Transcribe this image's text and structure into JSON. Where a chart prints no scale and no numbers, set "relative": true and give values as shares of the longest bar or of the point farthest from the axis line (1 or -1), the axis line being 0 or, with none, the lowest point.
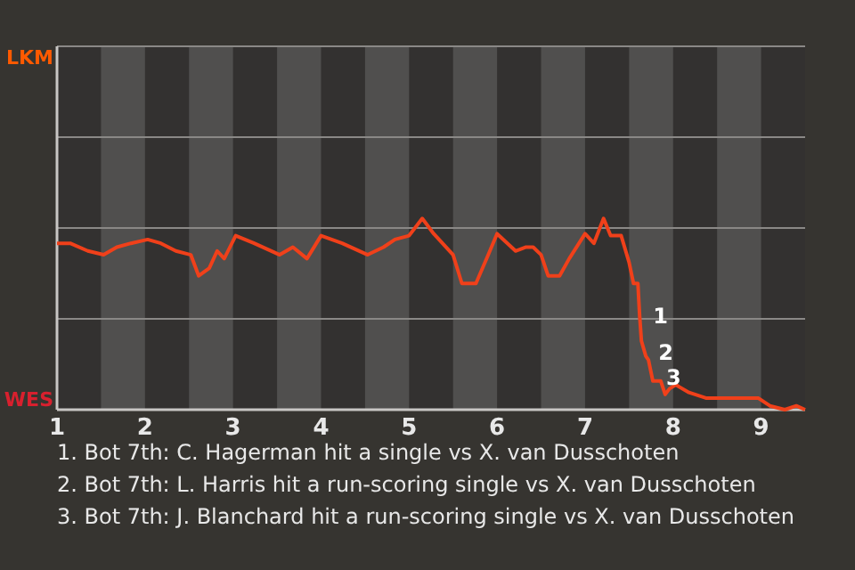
{
  "chart_data": {
    "type": "line",
    "relative": true,
    "xlim": [
      1,
      9.5
    ],
    "xticks": [
      1,
      2,
      3,
      4,
      5,
      6,
      7,
      8,
      9
    ],
    "marker": "none",
    "ref_lines": [
      {
        "axis": "y",
        "value": 0.475,
        "color": "#8a8886"
      },
      {
        "axis": "y",
        "value": 0.95,
        "color": "#8a8886"
      },
      {
        "axis": "y",
        "value": 1.425,
        "color": "#8a8886"
      }
    ],
    "line_style": "solid",
    "bands": [
      {
        "axis": "x",
        "from": 1.5,
        "to": 2,
        "color": "#504f4e"
      },
      {
        "axis": "x",
        "from": 2.5,
        "to": 3,
        "color": "#504f4e"
      },
      {
        "axis": "x",
        "from": 3.5,
        "to": 4,
        "color": "#504f4e"
      },
      {
        "axis": "x",
        "from": 4.5,
        "to": 5,
        "color": "#504f4e"
      },
      {
        "axis": "x",
        "from": 5.5,
        "to": 6,
        "color": "#504f4e"
      },
      {
        "axis": "x",
        "from": 6.5,
        "to": 7,
        "color": "#504f4e"
      },
      {
        "axis": "x",
        "from": 7.5,
        "to": 8,
        "color": "#504f4e"
      },
      {
        "axis": "x",
        "from": 8.5,
        "to": 9,
        "color": "#504f4e"
      }
    ],
    "series": [
      {
        "color": "#f0401a",
        "x": [
          1,
          1.15,
          1.35,
          1.53,
          1.68,
          1.84,
          2.03,
          2.18,
          2.35,
          2.52,
          2.61,
          2.73,
          2.82,
          2.9,
          3.03,
          3.24,
          3.53,
          3.68,
          3.84,
          4,
          4.24,
          4.53,
          4.71,
          4.84,
          5,
          5.15,
          5.28,
          5.5,
          5.6,
          5.76,
          5.9,
          6,
          6.21,
          6.33,
          6.41,
          6.5,
          6.58,
          6.71,
          6.82,
          7,
          7.1,
          7.21,
          7.29,
          7.41,
          7.5,
          7.55,
          7.6,
          7.62,
          7.64,
          7.69,
          7.72,
          7.77,
          7.86,
          7.91,
          7.96,
          8.03,
          8.18,
          8.38,
          8.58,
          8.79,
          8.97,
          9.1,
          9.27,
          9.4,
          9.5
        ],
        "values": [
          0.87,
          0.87,
          0.83,
          0.81,
          0.85,
          0.87,
          0.89,
          0.87,
          0.83,
          0.81,
          0.7,
          0.74,
          0.83,
          0.79,
          0.91,
          0.87,
          0.81,
          0.85,
          0.79,
          0.91,
          0.87,
          0.81,
          0.85,
          0.89,
          0.91,
          1,
          0.92,
          0.81,
          0.66,
          0.66,
          0.81,
          0.92,
          0.83,
          0.85,
          0.85,
          0.81,
          0.7,
          0.7,
          0.79,
          0.92,
          0.87,
          1,
          0.91,
          0.91,
          0.77,
          0.66,
          0.66,
          0.49,
          0.36,
          0.28,
          0.26,
          0.15,
          0.15,
          0.08,
          0.11,
          0.13,
          0.09,
          0.06,
          0.06,
          0.06,
          0.06,
          0.02,
          0,
          0.02,
          0
        ]
      }
    ],
    "annotations": [
      "LKM",
      "WES",
      {
        "text": "1",
        "x": 7.63,
        "y": 0.47
      },
      {
        "text": "2",
        "x": 7.69,
        "y": 0.28
      },
      {
        "text": "3",
        "x": 7.78,
        "y": 0.15
      },
      "1. Bot 7th: C. Hagerman hit a single vs X. van Dusschoten",
      "2. Bot 7th: L. Harris hit a run-scoring single vs X. van Dusschoten",
      "3. Bot 7th: J. Blanchard hit a run-scoring single vs X. van Dusschoten"
    ]
  }
}
